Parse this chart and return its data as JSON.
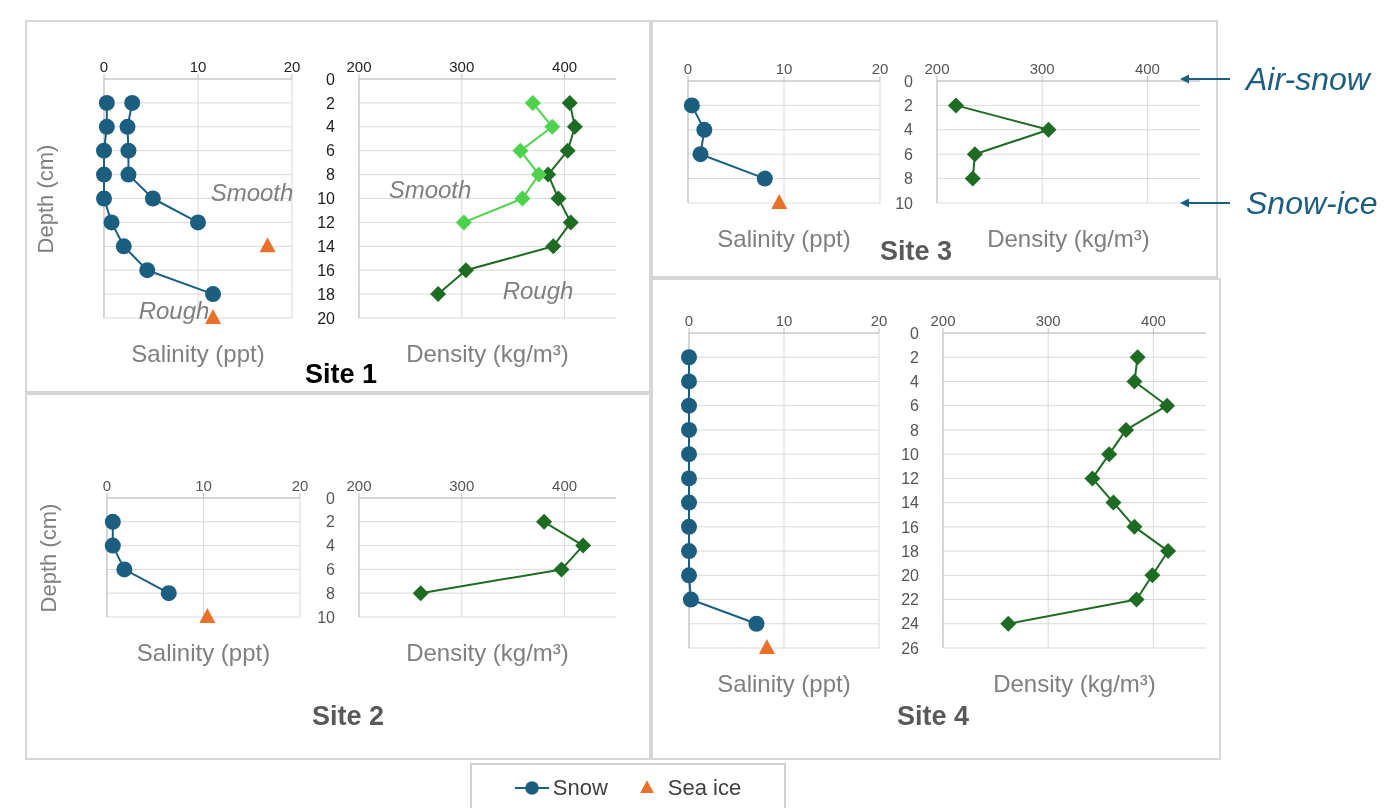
{
  "chart_data": [
    {
      "type": "line",
      "title": "Site 1",
      "xlabel": "Salinity (ppt)",
      "ylabel": "Depth (cm)",
      "xlim": [
        0,
        20
      ],
      "xticks": [
        0,
        10,
        20
      ],
      "ylim": [
        20,
        0
      ],
      "yticks": [
        0,
        2,
        4,
        6,
        8,
        10,
        12,
        14,
        16,
        18,
        20
      ],
      "tick_labels": "x",
      "grid": true,
      "legend": "bottom",
      "series": [
        {
          "name": "Snow",
          "color": "#1b5e80",
          "marker": "circle",
          "x": [
            0.3,
            0.3,
            0,
            0,
            0,
            0.8,
            2.1,
            4.6,
            11.6
          ],
          "values": [
            2,
            4,
            6,
            8,
            10,
            12,
            14,
            16,
            18
          ]
        },
        {
          "color": "#1b5e80",
          "marker": "circle",
          "x": [
            3.0,
            2.5,
            2.6,
            2.6,
            5.2,
            10.0
          ],
          "values": [
            2,
            4,
            6,
            8,
            10,
            12
          ]
        },
        {
          "name": "Sea ice",
          "type": "scatter",
          "color": "#e8702a",
          "marker": "triangle",
          "x": [
            11.6
          ],
          "values": [
            20
          ]
        },
        {
          "type": "scatter",
          "color": "#e8702a",
          "marker": "triangle",
          "x": [
            17.4
          ],
          "values": [
            14
          ]
        }
      ],
      "annotations": [
        "Smooth",
        "Rough"
      ]
    },
    {
      "type": "line",
      "xlabel": "Density (kg/m³)",
      "xlim": [
        200,
        450
      ],
      "xticks": [
        200,
        300,
        400
      ],
      "ylim": [
        20,
        0
      ],
      "yticks": [
        0,
        2,
        4,
        6,
        8,
        10,
        12,
        14,
        16,
        18,
        20
      ],
      "grid": true,
      "series": [
        {
          "color": "#1e6b23",
          "marker": "diamond",
          "x": [
            405,
            410,
            403,
            384,
            394,
            406,
            389,
            304,
            277
          ],
          "values": [
            2,
            4,
            6,
            8,
            10,
            12,
            14,
            16,
            18
          ]
        },
        {
          "color": "#4dd24d",
          "marker": "diamond",
          "x": [
            369,
            388,
            357,
            375,
            359,
            302
          ],
          "values": [
            2,
            4,
            6,
            8,
            10,
            12
          ]
        }
      ],
      "annotations": [
        "Smooth",
        "Rough"
      ]
    },
    {
      "type": "line",
      "title": "Site 3",
      "xlabel": "Salinity (ppt)",
      "xlim": [
        0,
        20
      ],
      "xticks": [
        0,
        10,
        20
      ],
      "ylim": [
        10,
        0
      ],
      "yticks": [
        0,
        2,
        4,
        6,
        8,
        10
      ],
      "tick_labels": "x",
      "grid": true,
      "series": [
        {
          "color": "#1b5e80",
          "marker": "circle",
          "x": [
            0.4,
            1.7,
            1.3,
            8.0
          ],
          "values": [
            2,
            4,
            6,
            8
          ]
        },
        {
          "type": "scatter",
          "color": "#e8702a",
          "marker": "triangle",
          "x": [
            9.5
          ],
          "values": [
            10
          ]
        }
      ]
    },
    {
      "type": "line",
      "xlabel": "Density (kg/m³)",
      "xlim": [
        200,
        450
      ],
      "xticks": [
        200,
        300,
        400
      ],
      "ylim": [
        10,
        0
      ],
      "yticks": [
        0,
        2,
        4,
        6,
        8,
        10
      ],
      "grid": true,
      "series": [
        {
          "color": "#1e6b23",
          "marker": "diamond",
          "x": [
            218,
            306,
            236,
            234
          ],
          "values": [
            2,
            4,
            6,
            8
          ]
        }
      ],
      "annotations": [
        "Air-snow",
        "Snow-ice"
      ]
    },
    {
      "type": "line",
      "title": "Site 2",
      "xlabel": "Salinity (ppt)",
      "ylabel": "Depth (cm)",
      "xlim": [
        0,
        20
      ],
      "xticks": [
        0,
        10,
        20
      ],
      "ylim": [
        10,
        0
      ],
      "yticks": [
        0,
        2,
        4,
        6,
        8,
        10
      ],
      "tick_labels": "x",
      "grid": true,
      "series": [
        {
          "color": "#1b5e80",
          "marker": "circle",
          "x": [
            0.6,
            0.6,
            1.8,
            6.4
          ],
          "values": [
            2,
            4,
            6,
            8
          ]
        },
        {
          "type": "scatter",
          "color": "#e8702a",
          "marker": "triangle",
          "x": [
            10.4
          ],
          "values": [
            10
          ]
        }
      ]
    },
    {
      "type": "line",
      "xlabel": "Density (kg/m³)",
      "xlim": [
        200,
        450
      ],
      "xticks": [
        200,
        300,
        400
      ],
      "ylim": [
        10,
        0
      ],
      "yticks": [
        0,
        2,
        4,
        6,
        8,
        10
      ],
      "grid": true,
      "series": [
        {
          "color": "#1e6b23",
          "marker": "diamond",
          "x": [
            380,
            418,
            397,
            260
          ],
          "values": [
            2,
            4,
            6,
            8
          ]
        }
      ]
    },
    {
      "type": "line",
      "title": "Site 4",
      "xlabel": "Salinity (ppt)",
      "xlim": [
        0,
        20
      ],
      "xticks": [
        0,
        10,
        20
      ],
      "ylim": [
        26,
        0
      ],
      "yticks": [
        0,
        2,
        4,
        6,
        8,
        10,
        12,
        14,
        16,
        18,
        20,
        22,
        24,
        26
      ],
      "tick_labels": "x",
      "grid": true,
      "series": [
        {
          "color": "#1b5e80",
          "marker": "circle",
          "x": [
            0,
            0,
            0,
            0,
            0,
            0,
            0,
            0,
            0,
            0,
            0.2,
            7.1
          ],
          "values": [
            2,
            4,
            6,
            8,
            10,
            12,
            14,
            16,
            18,
            20,
            22,
            24
          ]
        },
        {
          "type": "scatter",
          "color": "#e8702a",
          "marker": "triangle",
          "x": [
            8.2
          ],
          "values": [
            26
          ]
        }
      ]
    },
    {
      "type": "line",
      "xlabel": "Density (kg/m³)",
      "xlim": [
        200,
        450
      ],
      "xticks": [
        200,
        300,
        400
      ],
      "ylim": [
        26,
        0
      ],
      "yticks": [
        0,
        2,
        4,
        6,
        8,
        10,
        12,
        14,
        16,
        18,
        20,
        22,
        24,
        26
      ],
      "grid": true,
      "series": [
        {
          "color": "#1e6b23",
          "marker": "diamond",
          "x": [
            385,
            382,
            413,
            374,
            358,
            342,
            362,
            382,
            414,
            399,
            384,
            262
          ],
          "values": [
            2,
            4,
            6,
            8,
            10,
            12,
            14,
            16,
            18,
            20,
            22,
            24
          ]
        }
      ]
    }
  ]
}
